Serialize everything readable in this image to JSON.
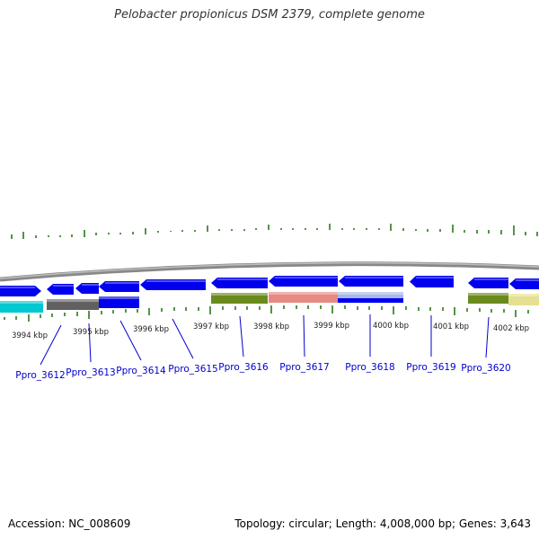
{
  "title": "Pelobacter propionicus DSM 2379, complete genome",
  "footer": {
    "accession": "Accession: NC_008609",
    "summary": "Topology: circular; Length: 4,008,000 bp; Genes: 3,643"
  },
  "colors": {
    "gene_blue": "#0000ee",
    "backbone": "#888888",
    "tick_green": "#2a7a1a",
    "label_blue": "#0000cc",
    "cyan": "#00c8d0",
    "gray": "#606060",
    "olive": "#6b8a1e",
    "salmon": "#e88a84",
    "lightblue": "#a8b8e8",
    "khaki": "#e4e090"
  },
  "scale_labels": [
    "3994 kbp",
    "3995 kbp",
    "3996 kbp",
    "3997 kbp",
    "3998 kbp",
    "3999 kbp",
    "4000 kbp",
    "4001 kbp",
    "4002 kbp"
  ],
  "gene_labels": [
    "Ppro_3612",
    "Ppro_3613",
    "Ppro_3614",
    "Ppro_3615",
    "Ppro_3616",
    "Ppro_3617",
    "Ppro_3618",
    "Ppro_3619",
    "Ppro_3620"
  ]
}
